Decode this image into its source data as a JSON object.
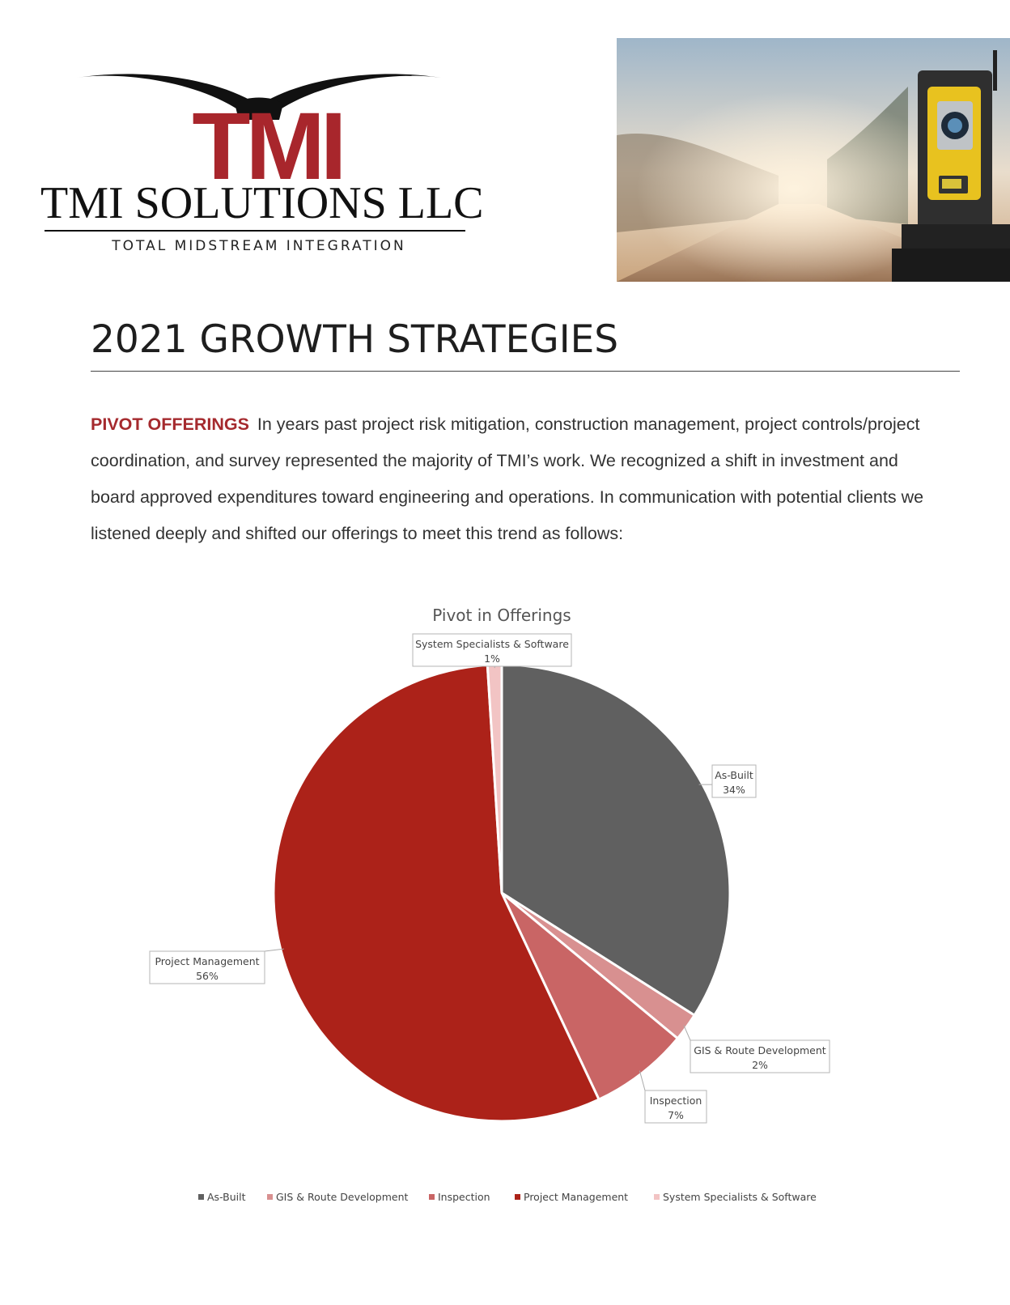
{
  "logo": {
    "mark": "TMI",
    "company": "TMI SOLUTIONS LLC",
    "tagline": "TOTAL MIDSTREAM INTEGRATION"
  },
  "photo": {
    "icon": "survey-total-station-photo"
  },
  "page_title": "2021 GROWTH STRATEGIES",
  "intro": {
    "lead": "PIVOT OFFERINGS",
    "text": "In years past project risk mitigation, construction management, project controls/project coordination, and survey represented the majority of TMI’s work. We recognized a shift in investment and board approved expenditures toward engineering and operations. In communication with potential clients we listened deeply and shifted our offerings to meet this trend as follows:"
  },
  "colors": {
    "accent_red": "#a52a2e",
    "as_built": "#606060",
    "gis": "#d89090",
    "inspection": "#c96565",
    "project_management": "#ac2219",
    "system_specialists": "#f2c4c4"
  },
  "chart_data": {
    "type": "pie",
    "title": "Pivot in Offerings",
    "legend_position": "bottom",
    "slices": [
      {
        "name": "As-Built",
        "value": 34,
        "label": "34%",
        "color": "#606060"
      },
      {
        "name": "GIS & Route Development",
        "value": 2,
        "label": "2%",
        "color": "#d89090"
      },
      {
        "name": "Inspection",
        "value": 7,
        "label": "7%",
        "color": "#c96565"
      },
      {
        "name": "Project Management",
        "value": 56,
        "label": "56%",
        "color": "#ac2219"
      },
      {
        "name": "System Specialists & Software",
        "value": 1,
        "label": "1%",
        "color": "#f2c4c4"
      }
    ]
  }
}
